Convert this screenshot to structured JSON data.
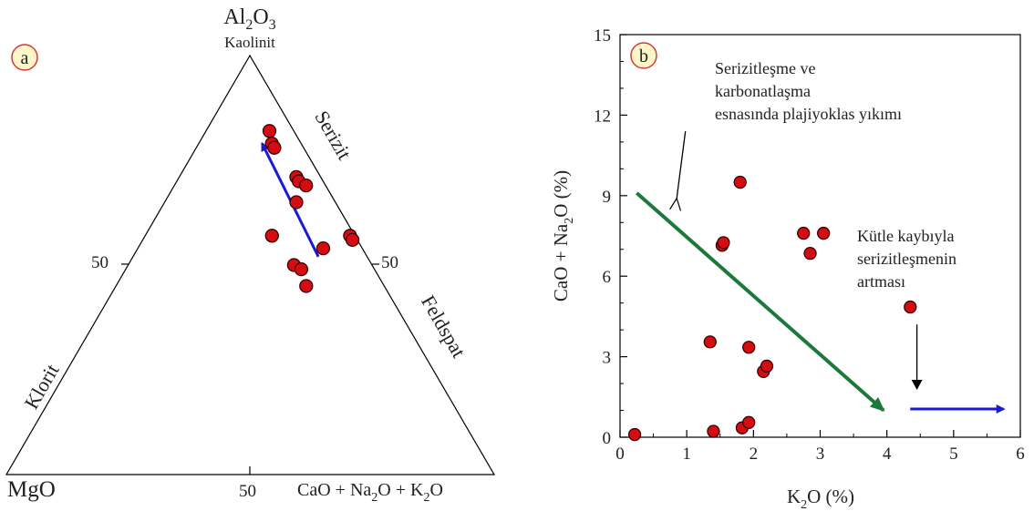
{
  "panels": {
    "a": {
      "label": "a",
      "apex_top": "Al2O3",
      "apex_top_sub": "Kaolinit",
      "apex_left": "MgO",
      "apex_right": "CaO + Na2O + K2O",
      "tick_left": "50",
      "tick_right": "50",
      "tick_bottom": "50",
      "edge_left_label": "Klorit",
      "edge_right_upper_label": "Serizit",
      "edge_right_lower_label": "Feldspat"
    },
    "b": {
      "label": "b",
      "annotation_1": [
        "Serizitleşme ve",
        "karbonatlaşma",
        "esnasında plajiyoklas yıkımı"
      ],
      "annotation_2": [
        "Kütle kaybıyla",
        "serizitleşmenin",
        "artması"
      ]
    }
  },
  "colors": {
    "marker_fill": "#d40d12",
    "marker_stroke": "#3a0000",
    "arrow_blue": "#1a1ad6",
    "arrow_green": "#1b7a3a",
    "label_circle_fill": "#fdf6c8",
    "label_circle_stroke": "#d23a3a"
  },
  "chart_data": [
    {
      "type": "scatter",
      "subtype": "ternary",
      "title": "",
      "components": [
        "Al2O3",
        "MgO",
        "CaO + Na2O + K2O"
      ],
      "points": [
        {
          "Al2O3": 82,
          "MgO": 5,
          "CaO + Na2O + K2O": 13
        },
        {
          "Al2O3": 79,
          "MgO": 6,
          "CaO + Na2O + K2O": 15
        },
        {
          "Al2O3": 78,
          "MgO": 6,
          "CaO + Na2O + K2O": 16
        },
        {
          "Al2O3": 71,
          "MgO": 5,
          "CaO + Na2O + K2O": 24
        },
        {
          "Al2O3": 70,
          "MgO": 5,
          "CaO + Na2O + K2O": 25
        },
        {
          "Al2O3": 69,
          "MgO": 4,
          "CaO + Na2O + K2O": 27
        },
        {
          "Al2O3": 65,
          "MgO": 8,
          "CaO + Na2O + K2O": 27
        },
        {
          "Al2O3": 57,
          "MgO": 1,
          "CaO + Na2O + K2O": 42
        },
        {
          "Al2O3": 56,
          "MgO": 1,
          "CaO + Na2O + K2O": 43
        },
        {
          "Al2O3": 57,
          "MgO": 17,
          "CaO + Na2O + K2O": 26
        },
        {
          "Al2O3": 54,
          "MgO": 8,
          "CaO + Na2O + K2O": 38
        },
        {
          "Al2O3": 50,
          "MgO": 16,
          "CaO + Na2O + K2O": 34
        },
        {
          "Al2O3": 49,
          "MgO": 15,
          "CaO + Na2O + K2O": 36
        },
        {
          "Al2O3": 45,
          "MgO": 16,
          "CaO + Na2O + K2O": 39
        }
      ],
      "arrows": [
        {
          "color": "blue",
          "from": {
            "Al2O3": 52,
            "MgO": 10,
            "CaO + Na2O + K2O": 38
          },
          "to": {
            "Al2O3": 79,
            "MgO": 8,
            "CaO + Na2O + K2O": 13
          }
        }
      ]
    },
    {
      "type": "scatter",
      "title": "",
      "xlabel": "K2O (%)",
      "ylabel": "CaO + Na2O (%)",
      "xlim": [
        0,
        6
      ],
      "ylim": [
        0,
        15
      ],
      "xticks": [
        0,
        1,
        2,
        3,
        4,
        5,
        6
      ],
      "yticks": [
        0,
        3,
        6,
        9,
        12,
        15
      ],
      "grid": false,
      "points": [
        {
          "x": 0.22,
          "y": 0.1
        },
        {
          "x": 1.4,
          "y": 0.22
        },
        {
          "x": 1.83,
          "y": 0.35
        },
        {
          "x": 1.93,
          "y": 0.55
        },
        {
          "x": 1.35,
          "y": 3.55
        },
        {
          "x": 1.93,
          "y": 3.35
        },
        {
          "x": 2.15,
          "y": 2.45
        },
        {
          "x": 2.2,
          "y": 2.65
        },
        {
          "x": 1.53,
          "y": 7.15
        },
        {
          "x": 1.55,
          "y": 7.25
        },
        {
          "x": 1.8,
          "y": 9.5
        },
        {
          "x": 2.75,
          "y": 7.6
        },
        {
          "x": 3.05,
          "y": 7.6
        },
        {
          "x": 2.85,
          "y": 6.85
        },
        {
          "x": 4.35,
          "y": 4.85
        }
      ],
      "arrows": [
        {
          "color": "green",
          "from": {
            "x": 0.25,
            "y": 9.1
          },
          "to": {
            "x": 3.95,
            "y": 1.0
          }
        },
        {
          "color": "black",
          "from": {
            "x": 0.98,
            "y": 11.4
          },
          "to": {
            "x": 0.85,
            "y": 8.9
          },
          "note": "pointer from annotation 1"
        },
        {
          "color": "black",
          "from": {
            "x": 4.45,
            "y": 4.2
          },
          "to": {
            "x": 4.45,
            "y": 1.8
          }
        },
        {
          "color": "blue",
          "from": {
            "x": 4.35,
            "y": 1.05
          },
          "to": {
            "x": 5.75,
            "y": 1.05
          }
        }
      ]
    }
  ]
}
